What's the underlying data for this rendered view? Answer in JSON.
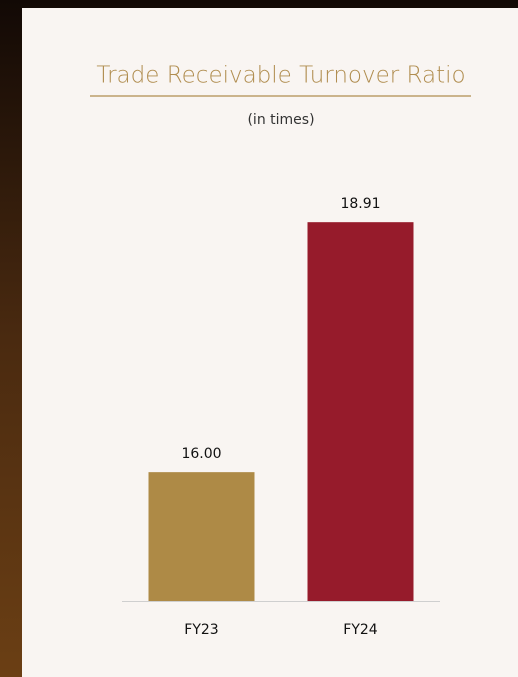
{
  "chart_data": {
    "type": "bar",
    "title": "Trade Receivable Turnover Ratio",
    "subtitle": "(in times)",
    "categories": [
      "FY23",
      "FY24"
    ],
    "values": [
      16,
      18.91
    ],
    "value_labels": [
      "16.00",
      "18.91"
    ],
    "colors": [
      "#ae8a46",
      "#961b2b"
    ],
    "ylim": [
      14.5,
      19.5
    ]
  }
}
